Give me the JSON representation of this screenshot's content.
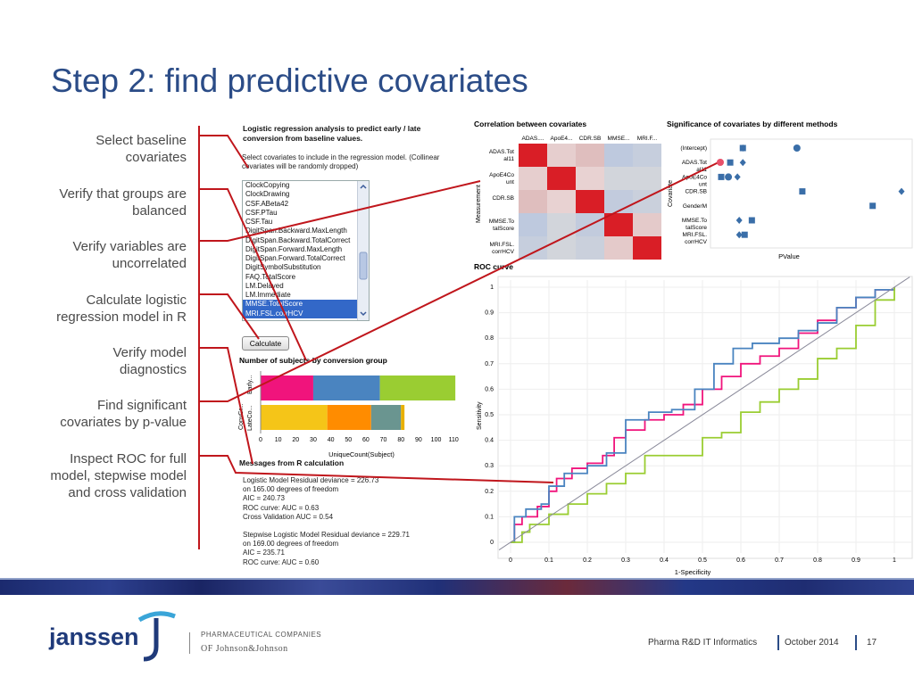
{
  "slide": {
    "title": "Step 2: find predictive covariates",
    "steps": [
      {
        "line1": "Select baseline",
        "line2": "covariates"
      },
      {
        "line1": "Verify that groups are",
        "line2": "balanced"
      },
      {
        "line1": "Verify variables are",
        "line2": "uncorrelated"
      },
      {
        "line1": "Calculate logistic",
        "line2": "regression model in R"
      },
      {
        "line1": "Verify model",
        "line2": "diagnostics"
      },
      {
        "line1": "Find significant",
        "line2": "covariates by p-value"
      },
      {
        "line1": "Inspect ROC for full",
        "line2": "model, stepwise model",
        "line3": "and cross validation"
      }
    ]
  },
  "panel": {
    "title_line1": "Logistic regression analysis to predict early / late",
    "title_line2": "conversion from baseline values.",
    "instr_line1": "Select covariates to include in the regression model. (Collinear",
    "instr_line2": "covariates will be randomly dropped)",
    "list_items": [
      {
        "label": "ClockCopying",
        "selected": false
      },
      {
        "label": "ClockDrawing",
        "selected": false
      },
      {
        "label": "CSF.ABeta42",
        "selected": false
      },
      {
        "label": "CSF.PTau",
        "selected": false
      },
      {
        "label": "CSF.Tau",
        "selected": false
      },
      {
        "label": "DigitSpan.Backward.MaxLength",
        "selected": false
      },
      {
        "label": "DigitSpan.Backward.TotalCorrect",
        "selected": false
      },
      {
        "label": "DigitSpan.Forward.MaxLength",
        "selected": false
      },
      {
        "label": "DigitSpan.Forward.TotalCorrect",
        "selected": false
      },
      {
        "label": "DigitSymbolSubstitution",
        "selected": false
      },
      {
        "label": "FAQ.TotalScore",
        "selected": false
      },
      {
        "label": "LM.Delayed",
        "selected": false
      },
      {
        "label": "LM.Immediate",
        "selected": false
      },
      {
        "label": "MMSE.TotalScore",
        "selected": true
      },
      {
        "label": "MRI.FSL.corrHCV",
        "selected": true
      }
    ],
    "button_label": "Calculate",
    "messages_title": "Messages from R calculation",
    "messages": [
      "Logistic Model Residual deviance = 226.73",
      "on 165.00 degrees of freedom",
      "AIC = 240.73",
      "ROC curve: AUC = 0.63",
      "Cross Validation AUC = 0.54",
      "",
      "Stepwise Logistic Model Residual deviance = 229.71",
      "on 169.00 degrees of freedom",
      "AIC = 235.71",
      "ROC curve: AUC = 0.60"
    ]
  },
  "footer": {
    "brand": "janssen",
    "pharma_line1": "PHARMACEUTICAL COMPANIES",
    "pharma_line2": "OF Johnson&Johnson",
    "org": "Pharma R&D IT Informatics",
    "date": "October 2014",
    "page": "17"
  },
  "colors": {
    "accent": "#2b4c87",
    "connector": "#c0161c"
  },
  "chart_data": [
    {
      "type": "bar",
      "title": "Number of subjects by conversion group",
      "xlabel": "UniqueCount(Subject)",
      "ylabel": "ConvGr...",
      "categories": [
        "Early...",
        "LateCo..."
      ],
      "xticks": [
        0,
        10,
        20,
        30,
        40,
        50,
        60,
        70,
        80,
        90,
        100,
        110
      ],
      "xlim": [
        0,
        115
      ],
      "stacked": true,
      "rows": [
        {
          "category": "Early...",
          "segments": [
            30,
            38,
            43
          ],
          "colors": [
            "#f0147c",
            "#4a84c0",
            "#9acd32"
          ]
        },
        {
          "category": "LateCo...",
          "segments": [
            38,
            25,
            17,
            2
          ],
          "colors": [
            "#f5c518",
            "#ff8c00",
            "#6a9590",
            "#e8b000"
          ]
        }
      ]
    },
    {
      "type": "heatmap",
      "title": "Correlation between covariates",
      "ylabel": "Measurement",
      "columns": [
        "ADAS....",
        "ApoE4...",
        "CDR.SB",
        "MMSE...",
        "MRI.F..."
      ],
      "rows": [
        "ADAS.Tot al11",
        "ApoE4Co unt",
        "CDR.SB",
        "MMSE.To talScore",
        "MRI.FSL. corrHCV"
      ],
      "values": [
        [
          1.0,
          0.15,
          0.35,
          -0.35,
          -0.25
        ],
        [
          0.15,
          1.0,
          0.1,
          -0.1,
          -0.1
        ],
        [
          0.35,
          0.1,
          1.0,
          -0.3,
          -0.2
        ],
        [
          -0.35,
          -0.1,
          -0.3,
          1.0,
          0.2
        ],
        [
          -0.25,
          -0.1,
          -0.2,
          0.2,
          1.0
        ]
      ]
    },
    {
      "type": "scatter",
      "title": "Significance of covariates by different methods",
      "xlabel": "PValue",
      "ylabel": "Covariate",
      "categories": [
        "(Intercept)",
        "ADAS.Tot al11",
        "ApoE4Co unt",
        "CDR.SB",
        "GenderM",
        "MMSE.To talScore",
        "MRI.FSL. corrHCV"
      ],
      "xlim": [
        0,
        1
      ],
      "series": [
        {
          "marker": "square",
          "points": [
            [
              "(Intercept)",
              0.12
            ],
            [
              "ADAS.Tot al11",
              0.05
            ],
            [
              "ApoE4Co unt",
              0.0
            ],
            [
              "CDR.SB",
              0.45
            ],
            [
              "GenderM",
              0.84
            ],
            [
              "MMSE.To talScore",
              0.17
            ],
            [
              "MRI.FSL. corrHCV",
              0.13
            ]
          ]
        },
        {
          "marker": "circle",
          "points": [
            [
              "(Intercept)",
              0.42
            ],
            [
              "ApoE4Co unt",
              0.04
            ]
          ]
        },
        {
          "marker": "diamond",
          "points": [
            [
              "(Intercept)",
              0.12
            ],
            [
              "ADAS.Tot al11",
              0.12
            ],
            [
              "ApoE4Co unt",
              0.09
            ],
            [
              "CDR.SB",
              1.0
            ],
            [
              "MMSE.To talScore",
              0.1
            ],
            [
              "MRI.FSL. corrHCV",
              0.1
            ]
          ]
        }
      ]
    },
    {
      "type": "line",
      "title": "ROC curve",
      "xlabel": "1-Specificity",
      "ylabel": "Sensitivity",
      "xlim": [
        0,
        1
      ],
      "ylim": [
        0,
        1
      ],
      "xticks": [
        "0",
        "0.1",
        "0.2",
        "0.3",
        "0.4",
        "0.5",
        "0.6",
        "0.7",
        "0.8",
        "0.9",
        "1"
      ],
      "yticks": [
        "0",
        "0.1",
        "0.2",
        "0.3",
        "0.4",
        "0.5",
        "0.6",
        "0.7",
        "0.8",
        "0.9",
        "1"
      ],
      "series": [
        {
          "color": "#f0147c",
          "points": [
            [
              0,
              0
            ],
            [
              0.01,
              0.07
            ],
            [
              0.03,
              0.1
            ],
            [
              0.07,
              0.14
            ],
            [
              0.1,
              0.2
            ],
            [
              0.12,
              0.25
            ],
            [
              0.16,
              0.29
            ],
            [
              0.2,
              0.31
            ],
            [
              0.24,
              0.34
            ],
            [
              0.27,
              0.41
            ],
            [
              0.3,
              0.44
            ],
            [
              0.35,
              0.48
            ],
            [
              0.4,
              0.5
            ],
            [
              0.45,
              0.54
            ],
            [
              0.5,
              0.6
            ],
            [
              0.55,
              0.65
            ],
            [
              0.6,
              0.7
            ],
            [
              0.65,
              0.73
            ],
            [
              0.7,
              0.76
            ],
            [
              0.75,
              0.82
            ],
            [
              0.8,
              0.87
            ],
            [
              0.85,
              0.92
            ],
            [
              0.9,
              0.96
            ],
            [
              0.95,
              0.99
            ],
            [
              1,
              1
            ]
          ]
        },
        {
          "color": "#4a84c0",
          "points": [
            [
              0,
              0
            ],
            [
              0.01,
              0.1
            ],
            [
              0.04,
              0.13
            ],
            [
              0.08,
              0.15
            ],
            [
              0.1,
              0.22
            ],
            [
              0.14,
              0.27
            ],
            [
              0.2,
              0.3
            ],
            [
              0.25,
              0.35
            ],
            [
              0.3,
              0.48
            ],
            [
              0.36,
              0.51
            ],
            [
              0.42,
              0.52
            ],
            [
              0.48,
              0.6
            ],
            [
              0.53,
              0.7
            ],
            [
              0.58,
              0.76
            ],
            [
              0.63,
              0.78
            ],
            [
              0.7,
              0.8
            ],
            [
              0.75,
              0.83
            ],
            [
              0.8,
              0.86
            ],
            [
              0.85,
              0.92
            ],
            [
              0.9,
              0.96
            ],
            [
              0.95,
              0.99
            ],
            [
              1,
              1
            ]
          ]
        },
        {
          "color": "#9acd32",
          "points": [
            [
              0,
              0
            ],
            [
              0.03,
              0.04
            ],
            [
              0.05,
              0.07
            ],
            [
              0.1,
              0.11
            ],
            [
              0.15,
              0.15
            ],
            [
              0.2,
              0.19
            ],
            [
              0.25,
              0.23
            ],
            [
              0.3,
              0.27
            ],
            [
              0.35,
              0.34
            ],
            [
              0.4,
              0.34
            ],
            [
              0.45,
              0.34
            ],
            [
              0.5,
              0.41
            ],
            [
              0.55,
              0.43
            ],
            [
              0.6,
              0.51
            ],
            [
              0.65,
              0.55
            ],
            [
              0.7,
              0.6
            ],
            [
              0.75,
              0.64
            ],
            [
              0.8,
              0.72
            ],
            [
              0.85,
              0.76
            ],
            [
              0.9,
              0.85
            ],
            [
              0.95,
              0.95
            ],
            [
              1,
              1
            ]
          ]
        },
        {
          "color": "#8a8a9a",
          "points": [
            [
              0,
              0
            ],
            [
              1,
              1
            ]
          ]
        }
      ]
    }
  ]
}
